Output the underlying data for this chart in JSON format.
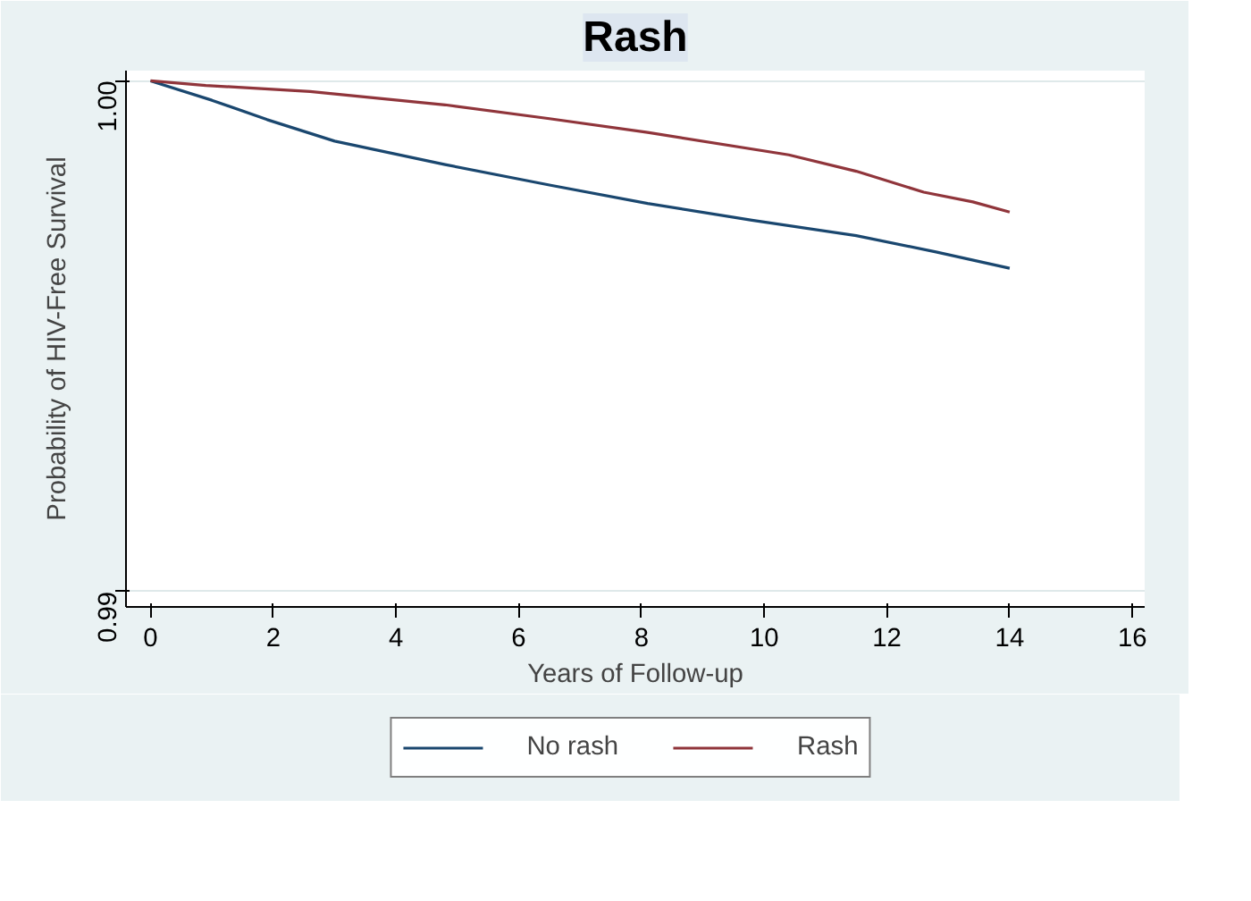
{
  "chart_data": {
    "type": "line",
    "title": "Rash",
    "xlabel": "Years of Follow-up",
    "ylabel": "Probability of HIV-Free Survival",
    "xlim": [
      -0.4,
      16.2
    ],
    "xticks": [
      0,
      2,
      4,
      6,
      8,
      10,
      12,
      14,
      16
    ],
    "ylim": [
      0.9897,
      1.0002
    ],
    "yticks": [
      {
        "value": 0.99,
        "label": "0.99"
      },
      {
        "value": 1.0,
        "label": "1.00"
      }
    ],
    "grid": "y",
    "legend": "bottom",
    "series": [
      {
        "name": "No rash",
        "color": "#1a476f",
        "x": [
          0,
          1,
          1.9,
          3,
          4.8,
          6.5,
          8.1,
          9.8,
          11.5,
          12.8,
          14
        ],
        "values": [
          1.0,
          0.99962,
          0.99924,
          0.99882,
          0.99836,
          0.99796,
          0.9976,
          0.99727,
          0.99697,
          0.99665,
          0.99633
        ]
      },
      {
        "name": "Rash",
        "color": "#90353b",
        "x": [
          0,
          0.9,
          2.6,
          4.8,
          6.5,
          8.1,
          10.4,
          11.5,
          12.6,
          13.4,
          14
        ],
        "values": [
          1.0,
          0.99991,
          0.99979,
          0.99953,
          0.99926,
          0.99899,
          0.99855,
          0.99823,
          0.99782,
          0.99763,
          0.99743
        ]
      }
    ]
  }
}
